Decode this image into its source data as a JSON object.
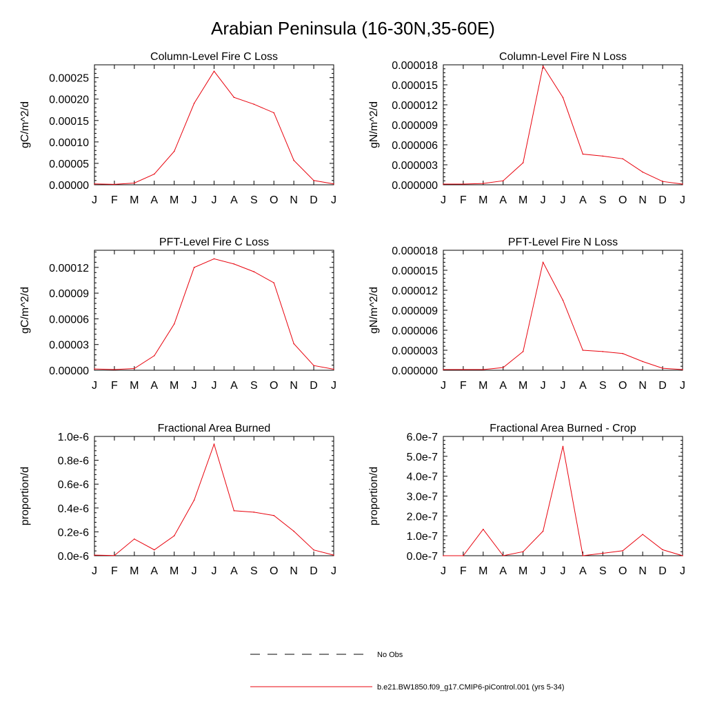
{
  "figure": {
    "title": "Arabian Peninsula (16-30N,35-60E)",
    "line_color": "#e8000b",
    "legend": {
      "obs_label": "No Obs",
      "model_label": "b.e21.BW1850.f09_g17.CMIP6-piControl.001 (yrs 5-34)"
    }
  },
  "chart_data": [
    {
      "type": "line",
      "title": "Column-Level Fire C Loss",
      "xlabel": "",
      "ylabel": "gC/m^2/d",
      "categories": [
        "J",
        "F",
        "M",
        "A",
        "M",
        "J",
        "J",
        "A",
        "S",
        "O",
        "N",
        "D",
        "J"
      ],
      "yticks": [
        0,
        5e-05,
        0.0001,
        0.00015,
        0.0002,
        0.00025
      ],
      "yticklabels": [
        "0.00000",
        "0.00005",
        "0.00010",
        "0.00015",
        "0.00020",
        "0.00025"
      ],
      "ylim": [
        0,
        0.00028
      ],
      "series": [
        {
          "name": "b.e21.BW1850.f09_g17.CMIP6-piControl.001 (yrs 5-34)",
          "values": [
            2e-06,
            1e-06,
            4e-06,
            2.5e-05,
            7.8e-05,
            0.00019,
            0.000265,
            0.000204,
            0.000188,
            0.000168,
            5.7e-05,
            1e-05,
            2e-06
          ]
        }
      ]
    },
    {
      "type": "line",
      "title": "Column-Level Fire N Loss",
      "xlabel": "",
      "ylabel": "gN/m^2/d",
      "categories": [
        "J",
        "F",
        "M",
        "A",
        "M",
        "J",
        "J",
        "A",
        "S",
        "O",
        "N",
        "D",
        "J"
      ],
      "yticks": [
        0,
        3e-06,
        6e-06,
        9e-06,
        1.2e-05,
        1.5e-05,
        1.8e-05
      ],
      "yticklabels": [
        "0.000000",
        "0.000003",
        "0.000006",
        "0.000009",
        "0.000012",
        "0.000015",
        "0.000018"
      ],
      "ylim": [
        0,
        1.8e-05
      ],
      "series": [
        {
          "name": "b.e21.BW1850.f09_g17.CMIP6-piControl.001 (yrs 5-34)",
          "values": [
            1e-07,
            1e-07,
            2e-07,
            6e-07,
            3.3e-06,
            1.78e-05,
            1.31e-05,
            4.6e-06,
            4.3e-06,
            3.9e-06,
            1.9e-06,
            5e-07,
            1e-07
          ]
        }
      ]
    },
    {
      "type": "line",
      "title": "PFT-Level Fire C Loss",
      "xlabel": "",
      "ylabel": "gC/m^2/d",
      "categories": [
        "J",
        "F",
        "M",
        "A",
        "M",
        "J",
        "J",
        "A",
        "S",
        "O",
        "N",
        "D",
        "J"
      ],
      "yticks": [
        0,
        3e-05,
        6e-05,
        9e-05,
        0.00012
      ],
      "yticklabels": [
        "0.00000",
        "0.00003",
        "0.00006",
        "0.00009",
        "0.00012"
      ],
      "ylim": [
        0,
        0.00014
      ],
      "series": [
        {
          "name": "b.e21.BW1850.f09_g17.CMIP6-piControl.001 (yrs 5-34)",
          "values": [
            1.5e-06,
            8e-07,
            2e-06,
            1.7e-05,
            5.4e-05,
            0.00012,
            0.00013,
            0.000124,
            0.000115,
            0.000102,
            3.1e-05,
            5.5e-06,
            1.2e-06
          ]
        }
      ]
    },
    {
      "type": "line",
      "title": "PFT-Level Fire N Loss",
      "xlabel": "",
      "ylabel": "gN/m^2/d",
      "categories": [
        "J",
        "F",
        "M",
        "A",
        "M",
        "J",
        "J",
        "A",
        "S",
        "O",
        "N",
        "D",
        "J"
      ],
      "yticks": [
        0,
        3e-06,
        6e-06,
        9e-06,
        1.2e-05,
        1.5e-05,
        1.8e-05
      ],
      "yticklabels": [
        "0.000000",
        "0.000003",
        "0.000006",
        "0.000009",
        "0.000012",
        "0.000015",
        "0.000018"
      ],
      "ylim": [
        0,
        1.8e-05
      ],
      "series": [
        {
          "name": "b.e21.BW1850.f09_g17.CMIP6-piControl.001 (yrs 5-34)",
          "values": [
            1e-07,
            1e-07,
            1e-07,
            4e-07,
            2.8e-06,
            1.62e-05,
            1.05e-05,
            3e-06,
            2.8e-06,
            2.5e-06,
            1.3e-06,
            3e-07,
            1e-07
          ]
        }
      ]
    },
    {
      "type": "line",
      "title": "Fractional Area Burned",
      "xlabel": "",
      "ylabel": "proportion/d",
      "categories": [
        "J",
        "F",
        "M",
        "A",
        "M",
        "J",
        "J",
        "A",
        "S",
        "O",
        "N",
        "D",
        "J"
      ],
      "yticks": [
        0,
        2e-07,
        4e-07,
        6e-07,
        8e-07,
        1e-06
      ],
      "yticklabels": [
        "0.0e-6",
        "0.2e-6",
        "0.4e-6",
        "0.6e-6",
        "0.8e-6",
        "1.0e-6"
      ],
      "ylim": [
        0,
        1e-06
      ],
      "series": [
        {
          "name": "b.e21.BW1850.f09_g17.CMIP6-piControl.001 (yrs 5-34)",
          "values": [
            5e-09,
            2e-09,
            1.4e-07,
            4.9e-08,
            1.67e-07,
            4.66e-07,
            9.35e-07,
            3.77e-07,
            3.65e-07,
            3.37e-07,
            2.05e-07,
            4.8e-08,
            5e-09
          ]
        }
      ]
    },
    {
      "type": "line",
      "title": "Fractional Area Burned - Crop",
      "xlabel": "",
      "ylabel": "proportion/d",
      "categories": [
        "J",
        "F",
        "M",
        "A",
        "M",
        "J",
        "J",
        "A",
        "S",
        "O",
        "N",
        "D",
        "J"
      ],
      "yticks": [
        0,
        1e-07,
        2e-07,
        3e-07,
        4e-07,
        5e-07,
        6e-07
      ],
      "yticklabels": [
        "0.0e-7",
        "1.0e-7",
        "2.0e-7",
        "3.0e-7",
        "4.0e-7",
        "5.0e-7",
        "6.0e-7"
      ],
      "ylim": [
        0,
        6e-07
      ],
      "series": [
        {
          "name": "b.e21.BW1850.f09_g17.CMIP6-piControl.001 (yrs 5-34)",
          "values": [
            0,
            0,
            1.33e-07,
            0,
            2e-08,
            1.23e-07,
            5.5e-07,
            0,
            1.2e-08,
            2.5e-08,
            1.07e-07,
            3e-08,
            0
          ]
        }
      ]
    }
  ]
}
